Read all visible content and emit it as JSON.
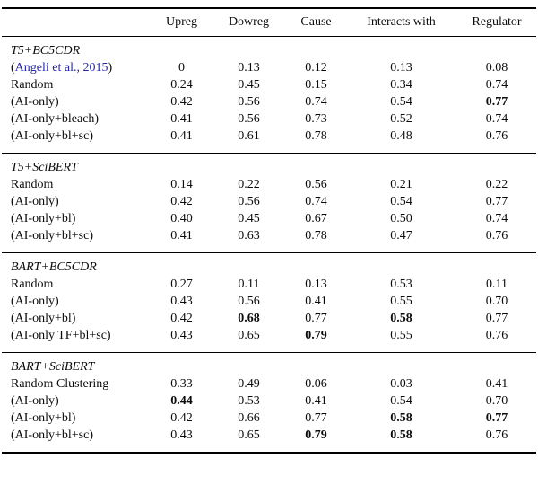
{
  "table": {
    "citation_color": "#2626ad",
    "columns": [
      "",
      "Upreg",
      "Dowreg",
      "Cause",
      "Interacts with",
      "Regulator"
    ],
    "groups": [
      {
        "title": "T5+BC5CDR",
        "rows": [
          {
            "label": "(Angeli et al., 2015)",
            "label_prefix": "(",
            "citation": "Angeli et al., 2015",
            "label_suffix": ")",
            "values": [
              "0",
              "0.13",
              "0.12",
              "0.13",
              "0.08"
            ],
            "bold": []
          },
          {
            "label": "Random",
            "values": [
              "0.24",
              "0.45",
              "0.15",
              "0.34",
              "0.74"
            ],
            "bold": []
          },
          {
            "label": "(AI-only)",
            "values": [
              "0.42",
              "0.56",
              "0.74",
              "0.54",
              "0.77"
            ],
            "bold": [
              4
            ]
          },
          {
            "label": "(AI-only+bleach)",
            "values": [
              "0.41",
              "0.56",
              "0.73",
              "0.52",
              "0.74"
            ],
            "bold": []
          },
          {
            "label": "(AI-only+bl+sc)",
            "values": [
              "0.41",
              "0.61",
              "0.78",
              "0.48",
              "0.76"
            ],
            "bold": []
          }
        ]
      },
      {
        "title": "T5+SciBERT",
        "rows": [
          {
            "label": "Random",
            "values": [
              "0.14",
              "0.22",
              "0.56",
              "0.21",
              "0.22"
            ],
            "bold": []
          },
          {
            "label": "(AI-only)",
            "values": [
              "0.42",
              "0.56",
              "0.74",
              "0.54",
              "0.77"
            ],
            "bold": []
          },
          {
            "label": "(AI-only+bl)",
            "values": [
              "0.40",
              "0.45",
              "0.67",
              "0.50",
              "0.74"
            ],
            "bold": []
          },
          {
            "label": "(AI-only+bl+sc)",
            "values": [
              "0.41",
              "0.63",
              "0.78",
              "0.47",
              "0.76"
            ],
            "bold": []
          }
        ]
      },
      {
        "title": "BART+BC5CDR",
        "rows": [
          {
            "label": "Random",
            "values": [
              "0.27",
              "0.11",
              "0.13",
              "0.53",
              "0.11"
            ],
            "bold": []
          },
          {
            "label": "(AI-only)",
            "values": [
              "0.43",
              "0.56",
              "0.41",
              "0.55",
              "0.70"
            ],
            "bold": []
          },
          {
            "label": "(AI-only+bl)",
            "values": [
              "0.42",
              "0.68",
              "0.77",
              "0.58",
              "0.77"
            ],
            "bold": [
              1,
              3
            ]
          },
          {
            "label": "(AI-only TF+bl+sc)",
            "values": [
              "0.43",
              "0.65",
              "0.79",
              "0.55",
              "0.76"
            ],
            "bold": [
              2
            ]
          }
        ]
      },
      {
        "title": "BART+SciBERT",
        "rows": [
          {
            "label": "Random Clustering",
            "values": [
              "0.33",
              "0.49",
              "0.06",
              "0.03",
              "0.41"
            ],
            "bold": []
          },
          {
            "label": "(AI-only)",
            "values": [
              "0.44",
              "0.53",
              "0.41",
              "0.54",
              "0.70"
            ],
            "bold": [
              0
            ]
          },
          {
            "label": "(AI-only+bl)",
            "values": [
              "0.42",
              "0.66",
              "0.77",
              "0.58",
              "0.77"
            ],
            "bold": [
              3,
              4
            ]
          },
          {
            "label": "(AI-only+bl+sc)",
            "values": [
              "0.43",
              "0.65",
              "0.79",
              "0.58",
              "0.76"
            ],
            "bold": [
              2,
              3
            ]
          }
        ]
      }
    ]
  }
}
